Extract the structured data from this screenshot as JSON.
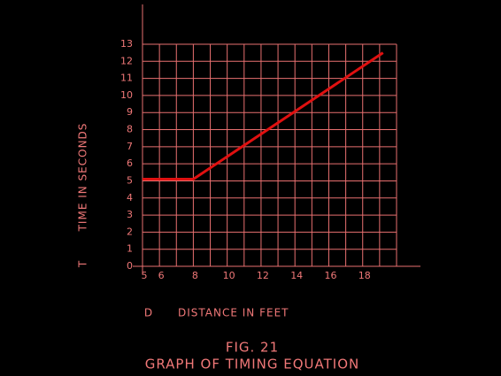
{
  "chart_data": {
    "type": "line",
    "title": "FIG. 21",
    "subtitle": "GRAPH OF TIMING EQUATION",
    "xlabel_symbol": "D",
    "xlabel": "DISTANCE IN FEET",
    "ylabel_symbol": "T",
    "ylabel": "TIME IN SECONDS",
    "x": [
      5,
      8,
      19.2
    ],
    "series": [
      {
        "name": "timing",
        "color": "#e01010",
        "values": [
          5.1,
          5.1,
          12.5
        ]
      }
    ],
    "xlim": [
      5,
      20
    ],
    "ylim": [
      0,
      13
    ],
    "xticks": [
      5,
      6,
      8,
      10,
      12,
      14,
      16,
      18
    ],
    "xgrid": [
      5,
      6,
      7,
      8,
      9,
      10,
      11,
      12,
      13,
      14,
      15,
      16,
      17,
      18,
      19,
      20
    ],
    "yticks": [
      0,
      1,
      2,
      3,
      4,
      5,
      6,
      7,
      8,
      9,
      10,
      11,
      12,
      13
    ],
    "grid": true,
    "grid_color": "#e87070"
  }
}
